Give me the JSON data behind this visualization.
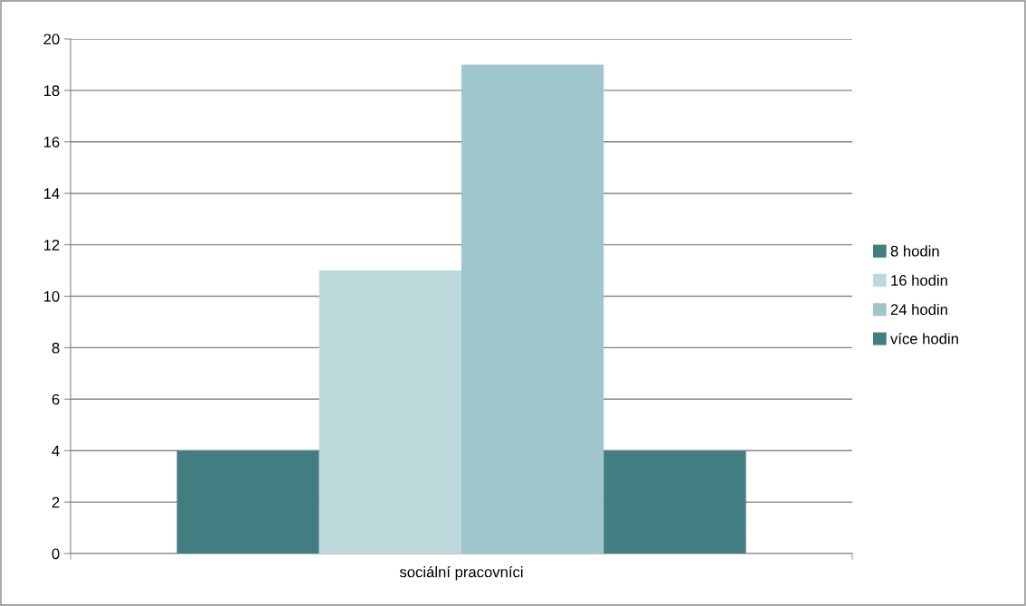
{
  "chart_data": {
    "type": "bar",
    "categories": [
      "sociální pracovníci"
    ],
    "series": [
      {
        "name": "8 hodin",
        "color": "#427d82",
        "values": [
          4
        ]
      },
      {
        "name": "16 hodin",
        "color": "#bdd9dc",
        "values": [
          11
        ]
      },
      {
        "name": "24 hodin",
        "color": "#9ec6cc",
        "values": [
          19
        ]
      },
      {
        "name": "více hodin",
        "color": "#427d82",
        "values": [
          4
        ]
      }
    ],
    "ylim": [
      0,
      20
    ],
    "yticks": [
      0,
      2,
      4,
      6,
      8,
      10,
      12,
      14,
      16,
      18,
      20
    ],
    "grid": "y",
    "legend": "right"
  }
}
